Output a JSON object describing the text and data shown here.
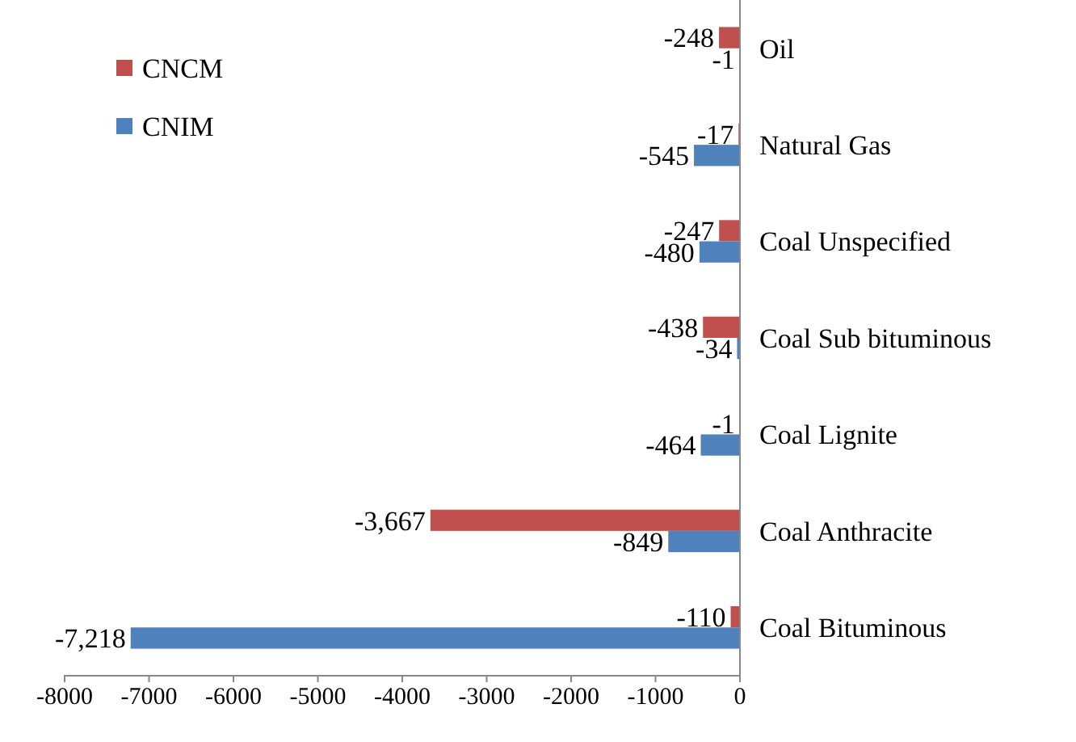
{
  "chart_data": {
    "type": "bar",
    "orientation": "horizontal",
    "categories": [
      "Oil",
      "Natural Gas",
      "Coal Unspecified",
      "Coal Sub bituminous",
      "Coal Lignite",
      "Coal Anthracite",
      "Coal Bituminous"
    ],
    "series": [
      {
        "name": "CNCM",
        "color": "#c0504d",
        "values": [
          -248,
          -17,
          -247,
          -438,
          -1,
          -3667,
          -110
        ],
        "value_labels": [
          "-248",
          "-17",
          "-247",
          "-438",
          "-1",
          "-3,667",
          "-110"
        ]
      },
      {
        "name": "CNIM",
        "color": "#4f81bd",
        "values": [
          -1,
          -545,
          -480,
          -34,
          -464,
          -849,
          -7218
        ],
        "value_labels": [
          "-1",
          "-545",
          "-480",
          "-34",
          "-464",
          "-849",
          "-7,218"
        ]
      }
    ],
    "xlim": [
      -8000,
      0
    ],
    "xticks": [
      -8000,
      -7000,
      -6000,
      -5000,
      -4000,
      -3000,
      -2000,
      -1000,
      0
    ],
    "grid": false,
    "legend": "top left"
  }
}
